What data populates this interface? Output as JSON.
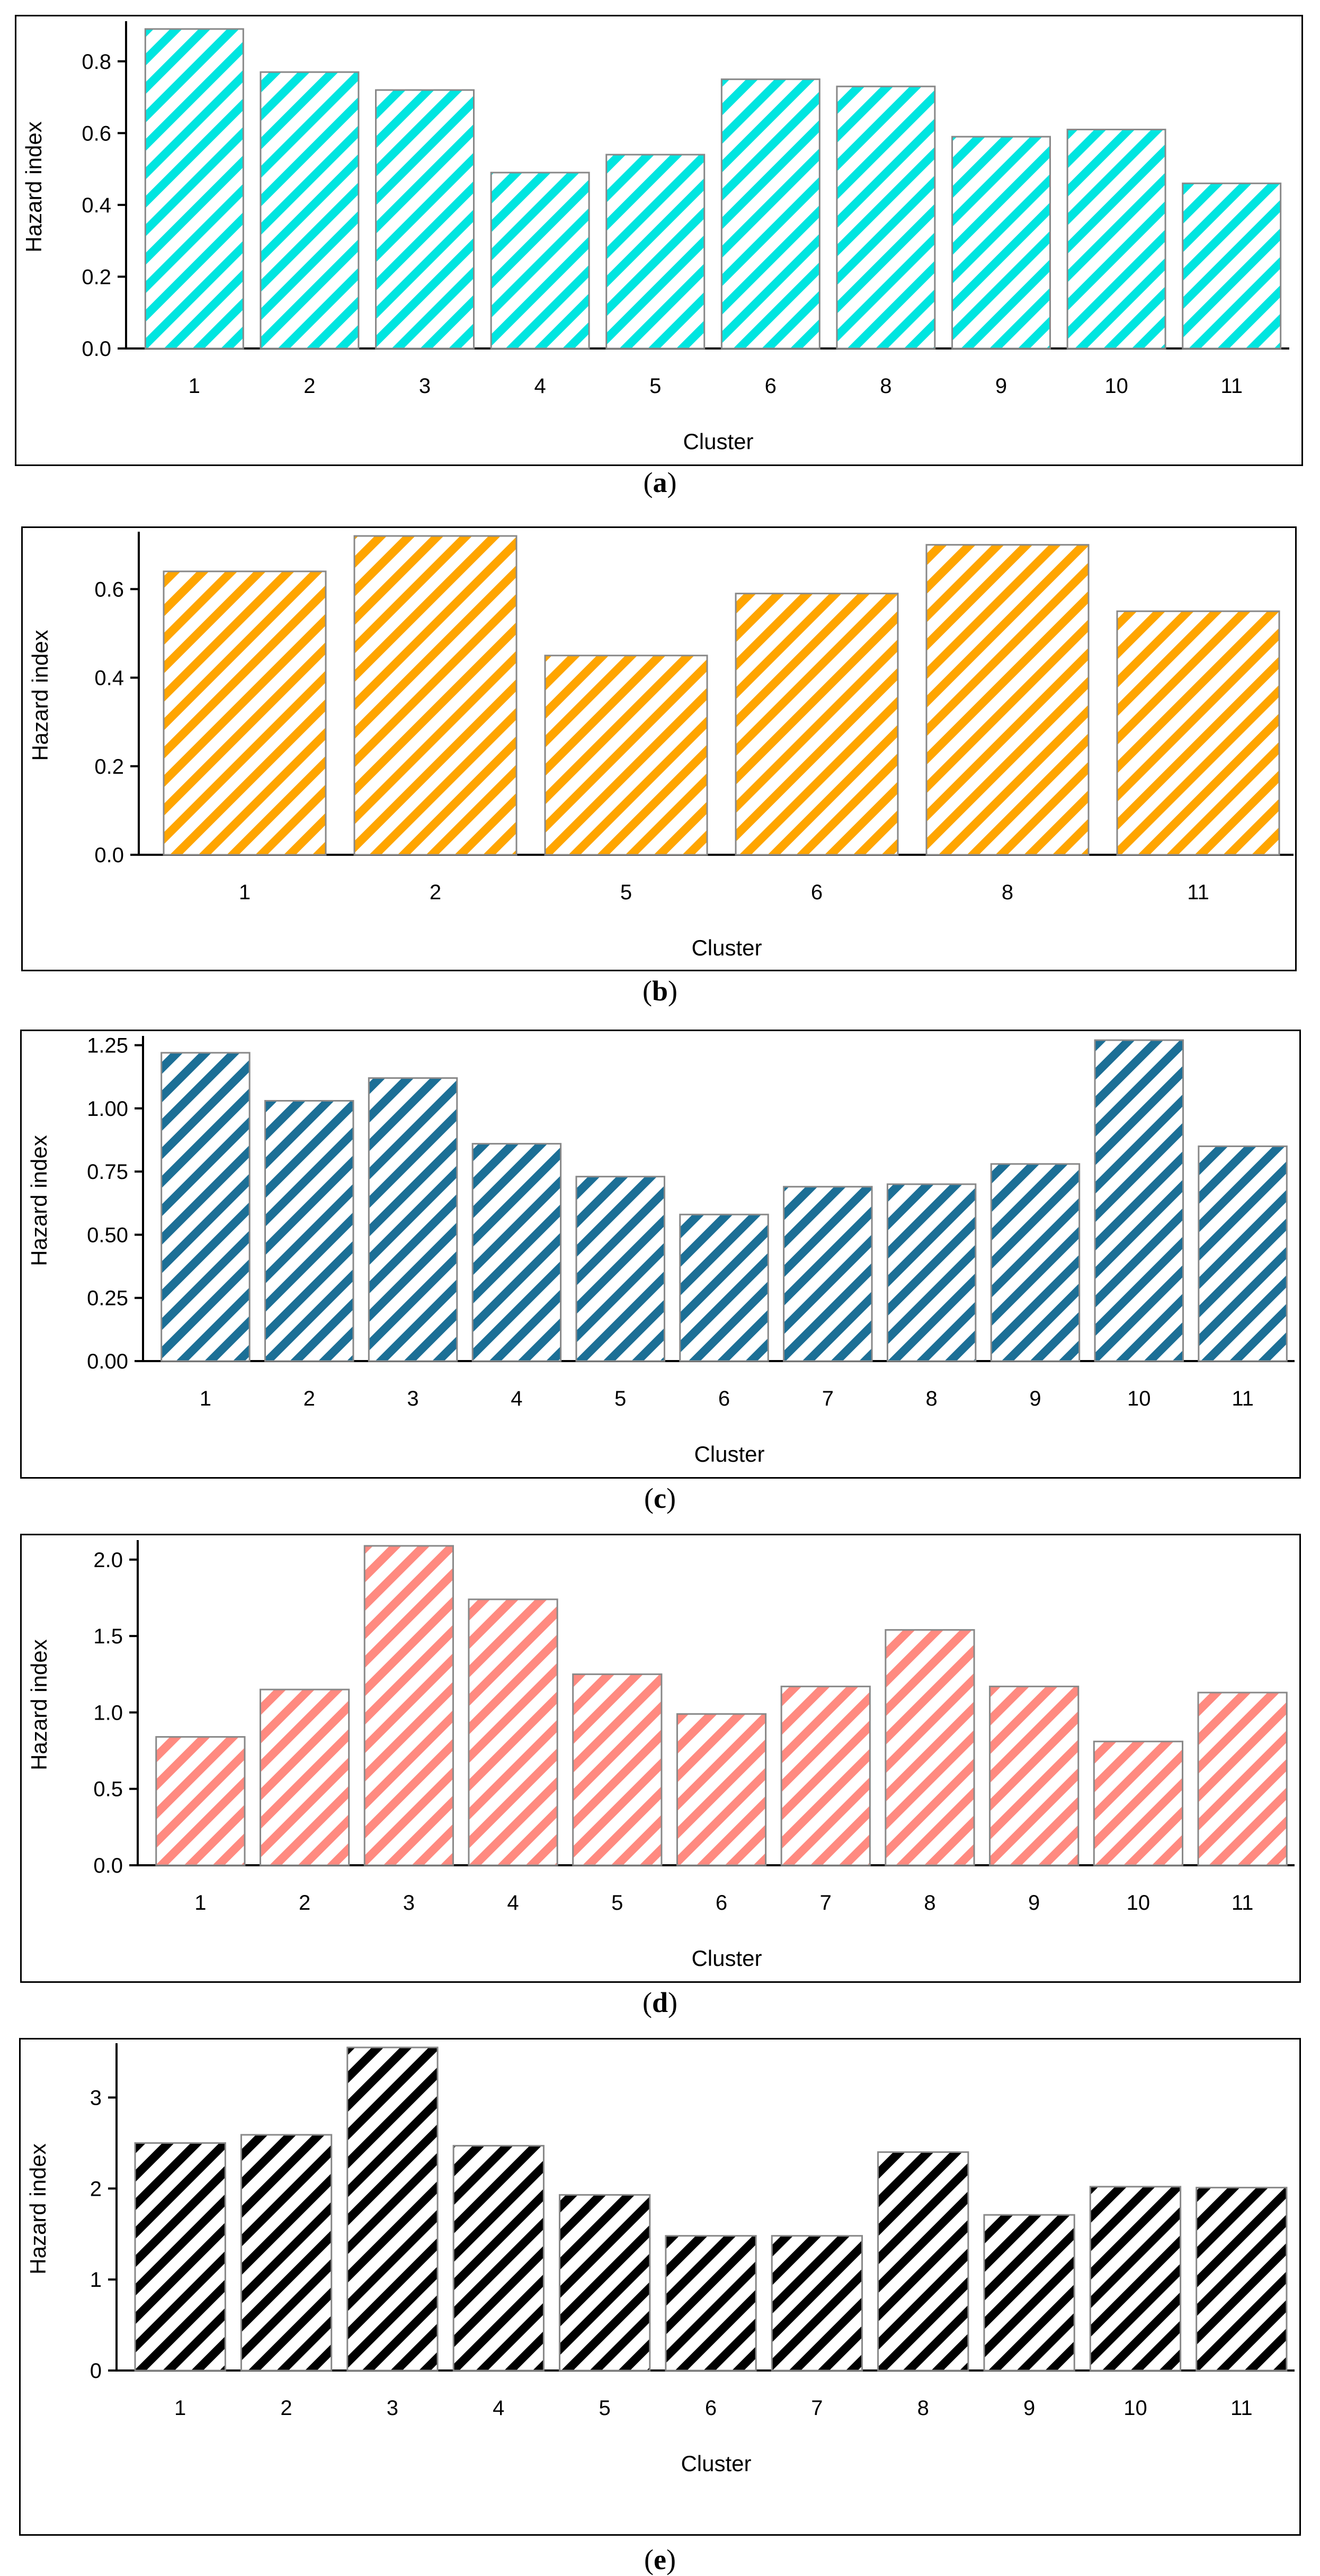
{
  "chart_data": [
    {
      "type": "bar",
      "panel_label": "a",
      "categories": [
        "1",
        "2",
        "3",
        "4",
        "5",
        "6",
        "8",
        "9",
        "10",
        "11"
      ],
      "values": [
        0.89,
        0.77,
        0.72,
        0.49,
        0.54,
        0.75,
        0.73,
        0.59,
        0.61,
        0.46
      ],
      "xlabel": "Cluster",
      "ylabel": "Hazard index",
      "ylim": [
        0,
        0.9
      ],
      "yticks": [
        "0.0",
        "0.2",
        "0.4",
        "0.6",
        "0.8"
      ],
      "ytick_values": [
        0,
        0.2,
        0.4,
        0.6,
        0.8
      ],
      "color": "#00e5e0"
    },
    {
      "type": "bar",
      "panel_label": "b",
      "categories": [
        "1",
        "2",
        "5",
        "6",
        "8",
        "11"
      ],
      "values": [
        0.64,
        0.72,
        0.45,
        0.59,
        0.7,
        0.55
      ],
      "xlabel": "Cluster",
      "ylabel": "Hazard index",
      "ylim": [
        0,
        0.72
      ],
      "yticks": [
        "0.0",
        "0.2",
        "0.4",
        "0.6"
      ],
      "ytick_values": [
        0,
        0.2,
        0.4,
        0.6
      ],
      "color": "#ffa500"
    },
    {
      "type": "bar",
      "panel_label": "c",
      "categories": [
        "1",
        "2",
        "3",
        "4",
        "5",
        "6",
        "7",
        "8",
        "9",
        "10",
        "11"
      ],
      "values": [
        1.22,
        1.03,
        1.12,
        0.86,
        0.73,
        0.58,
        0.69,
        0.7,
        0.78,
        1.27,
        0.85
      ],
      "xlabel": "Cluster",
      "ylabel": "Hazard index",
      "ylim": [
        0,
        1.27
      ],
      "yticks": [
        "0.00",
        "0.25",
        "0.50",
        "0.75",
        "1.00",
        "1.25"
      ],
      "ytick_values": [
        0,
        0.25,
        0.5,
        0.75,
        1.0,
        1.25
      ],
      "color": "#1c6f96"
    },
    {
      "type": "bar",
      "panel_label": "d",
      "categories": [
        "1",
        "2",
        "3",
        "4",
        "5",
        "6",
        "7",
        "8",
        "9",
        "10",
        "11"
      ],
      "values": [
        0.84,
        1.15,
        2.09,
        1.74,
        1.25,
        0.99,
        1.17,
        1.54,
        1.17,
        0.81,
        1.13
      ],
      "xlabel": "Cluster",
      "ylabel": "Hazard index",
      "ylim": [
        0,
        2.1
      ],
      "yticks": [
        "0.0",
        "0.5",
        "1.0",
        "1.5",
        "2.0"
      ],
      "ytick_values": [
        0,
        0.5,
        1.0,
        1.5,
        2.0
      ],
      "color": "#ff8a80"
    },
    {
      "type": "bar",
      "panel_label": "e",
      "categories": [
        "1",
        "2",
        "3",
        "4",
        "5",
        "6",
        "7",
        "8",
        "9",
        "10",
        "11"
      ],
      "values": [
        2.5,
        2.59,
        3.55,
        2.47,
        1.93,
        1.48,
        1.48,
        2.4,
        1.71,
        2.02,
        2.01
      ],
      "xlabel": "Cluster",
      "ylabel": "Hazard index",
      "ylim": [
        0,
        3.55
      ],
      "yticks": [
        "0",
        "1",
        "2",
        "3"
      ],
      "ytick_values": [
        0,
        1,
        2,
        3
      ],
      "color": "#000000"
    }
  ]
}
